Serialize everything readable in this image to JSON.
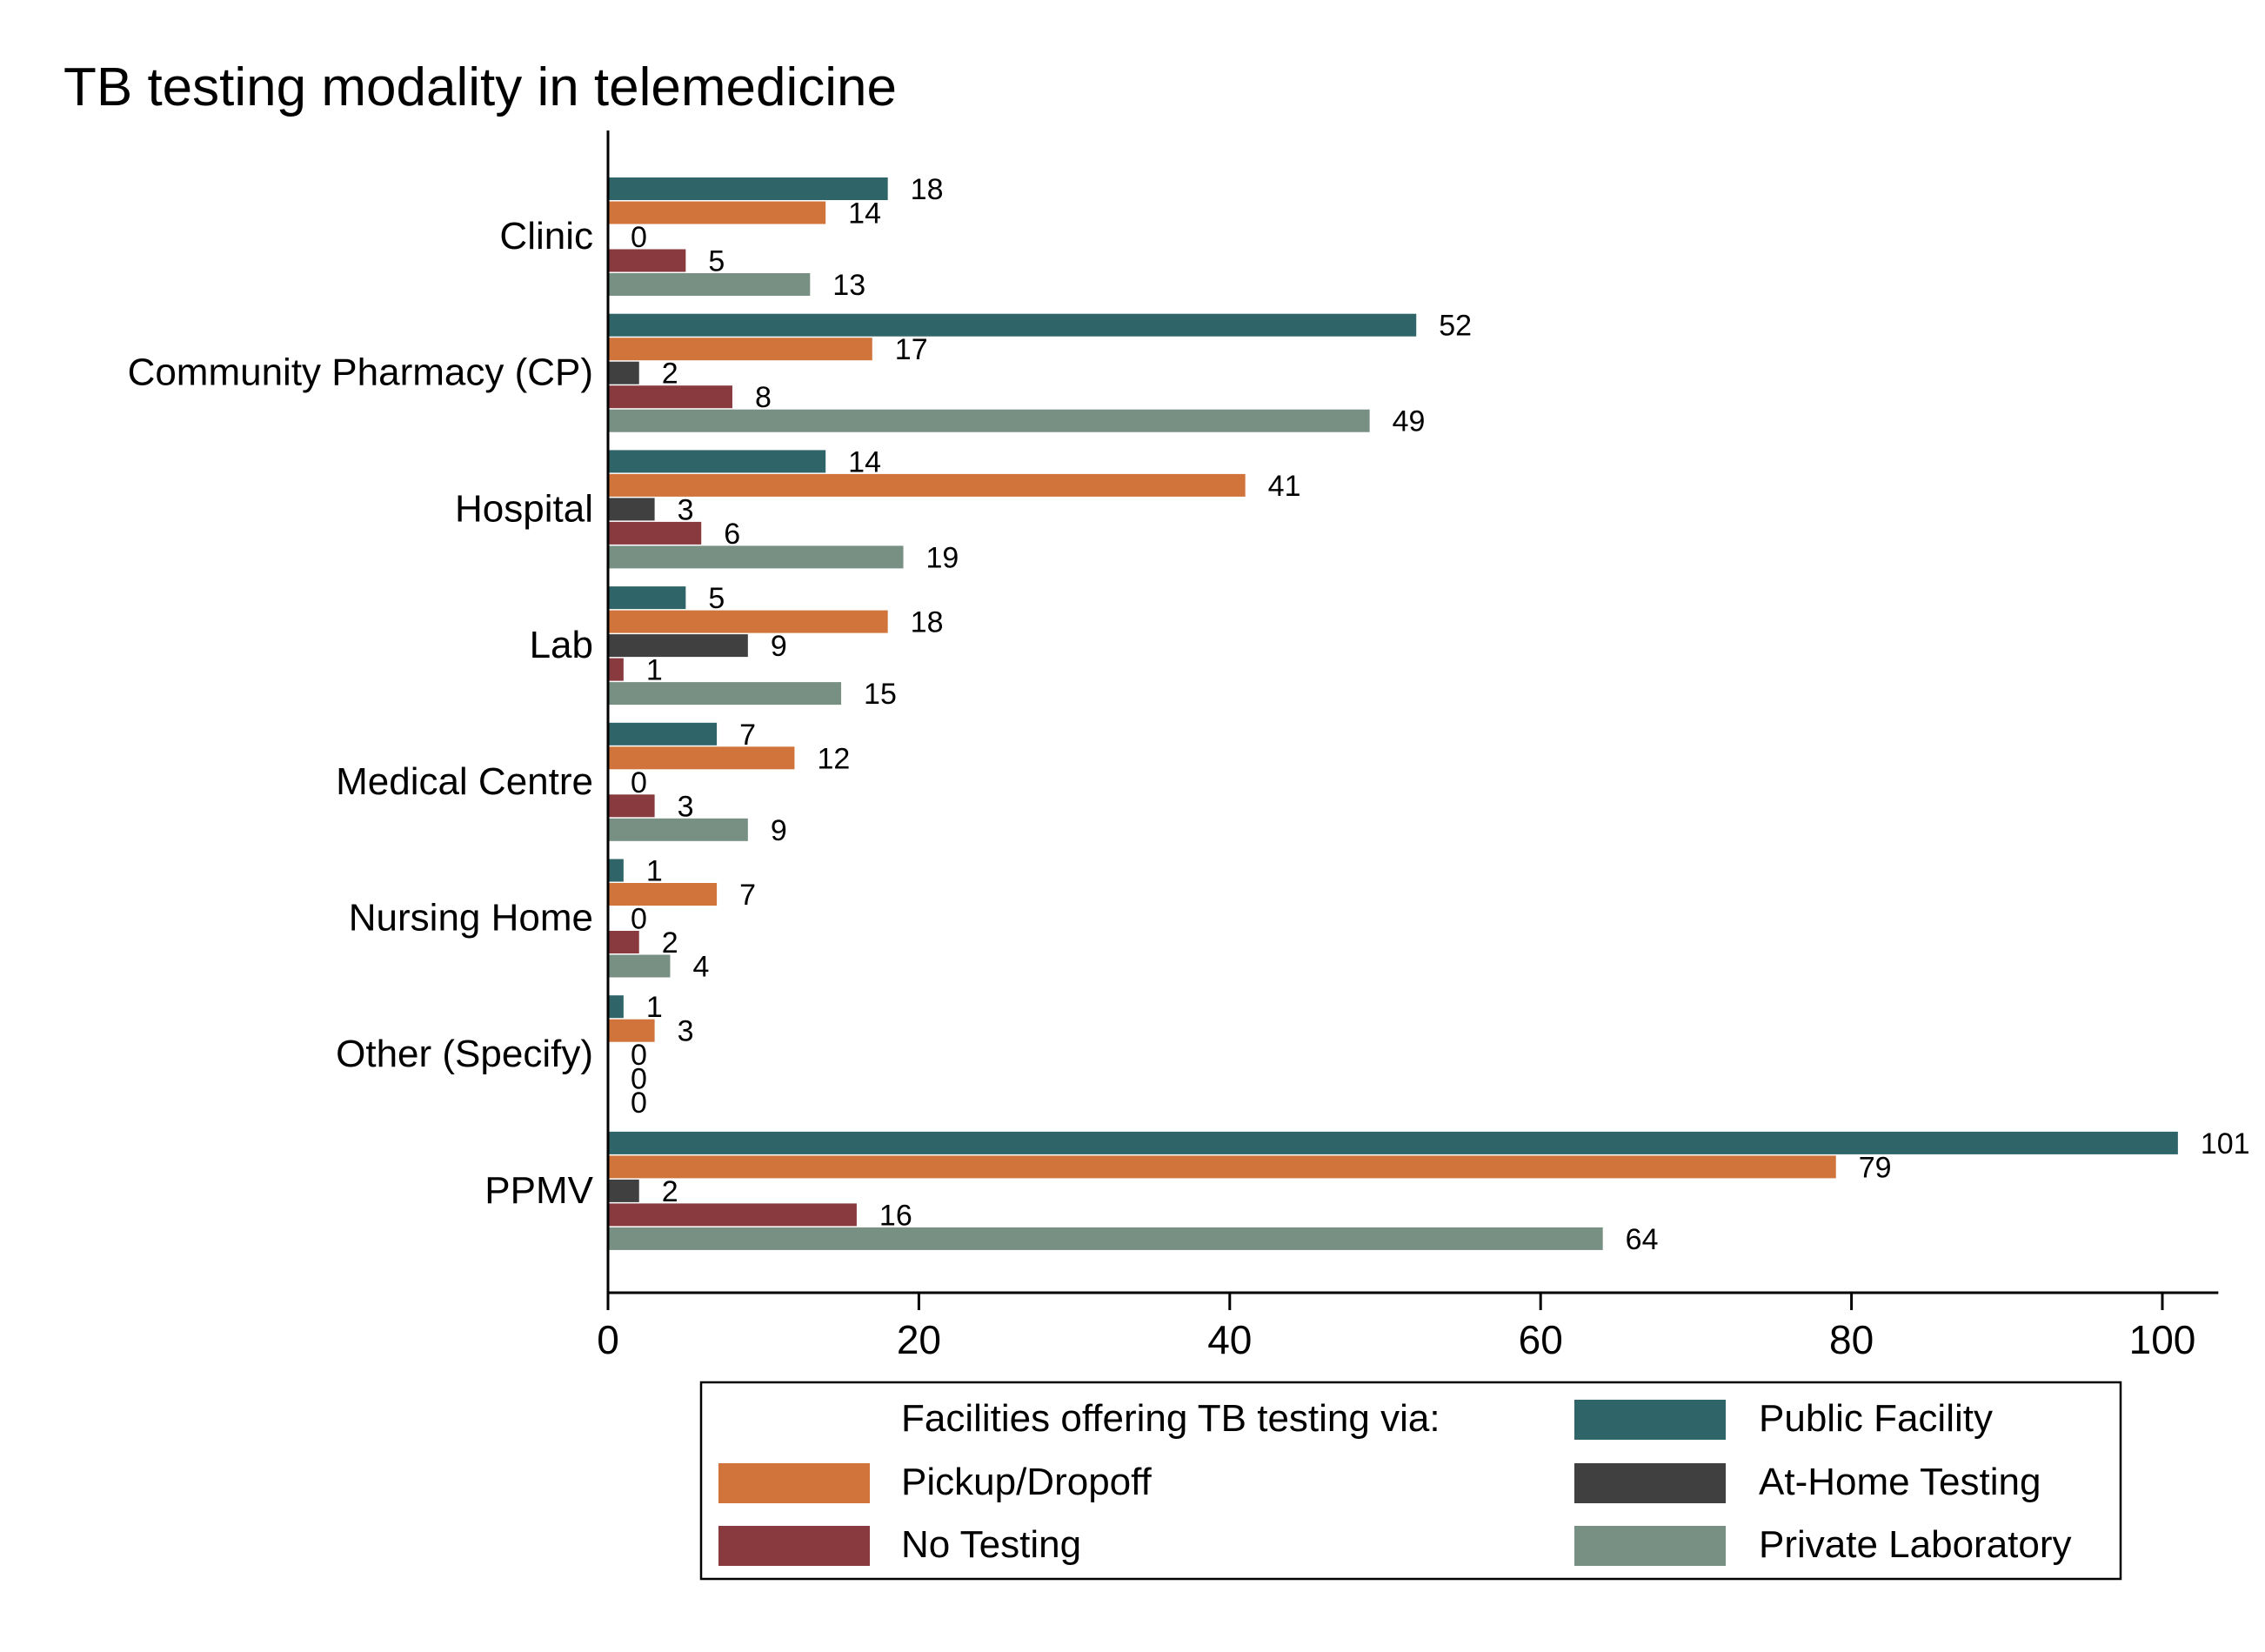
{
  "chart_data": {
    "type": "bar",
    "orientation": "horizontal",
    "title": "TB testing modality in telemedicine",
    "categories": [
      "Clinic",
      "Community Pharmacy (CP)",
      "Hospital",
      "Lab",
      "Medical Centre",
      "Nursing Home",
      "Other (Specify)",
      "PPMV"
    ],
    "series": [
      {
        "name": "Public Facility",
        "color": "#2f6468",
        "values": [
          18,
          52,
          14,
          5,
          7,
          1,
          1,
          101
        ]
      },
      {
        "name": "Pickup/Dropoff",
        "color": "#d0743c",
        "values": [
          14,
          17,
          41,
          18,
          12,
          7,
          3,
          79
        ]
      },
      {
        "name": "At-Home Testing",
        "color": "#404040",
        "values": [
          0,
          2,
          3,
          9,
          0,
          0,
          0,
          2
        ]
      },
      {
        "name": "No Testing",
        "color": "#893a3f",
        "values": [
          5,
          8,
          6,
          1,
          3,
          2,
          0,
          16
        ]
      },
      {
        "name": "Private Laboratory",
        "color": "#788f84",
        "values": [
          13,
          49,
          19,
          15,
          9,
          4,
          0,
          64
        ]
      }
    ],
    "xlim": [
      0,
      103.6
    ],
    "xticks": [
      0,
      20,
      40,
      60,
      80,
      100
    ],
    "xlabel": "",
    "ylabel": "",
    "grid": false,
    "legend": {
      "title": "Facilities offering TB testing via:",
      "placement": "bottom",
      "order": [
        "Public Facility",
        "Pickup/Dropoff",
        "At-Home Testing",
        "No Testing",
        "Private Laboratory"
      ]
    }
  }
}
